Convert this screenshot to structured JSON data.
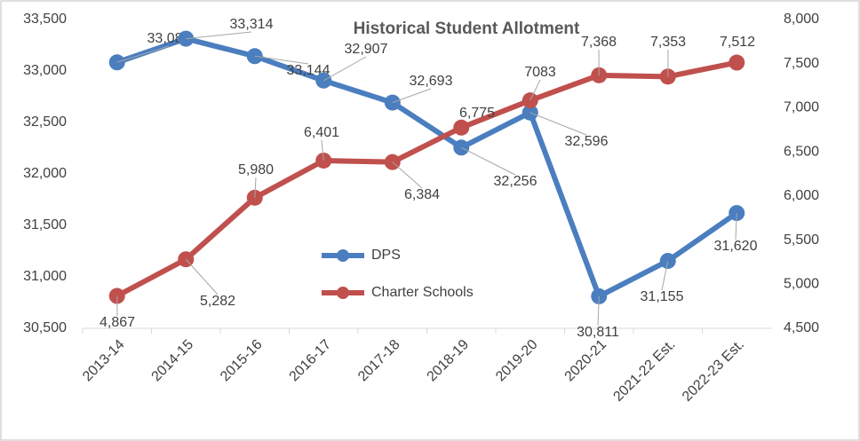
{
  "chart_data": {
    "type": "line",
    "title": "Historical Student Allotment",
    "categories": [
      "2013-14",
      "2014-15",
      "2015-16",
      "2016-17",
      "2017-18",
      "2018-19",
      "2019-20",
      "2020-21",
      "2021-22 Est.",
      "2022-23 Est."
    ],
    "series": [
      {
        "name": "DPS",
        "color": "#4a7ebf",
        "values": [
          33084,
          33314,
          33144,
          32907,
          32693,
          32256,
          32596,
          30811,
          31155,
          31620
        ],
        "value_labels": [
          "33,084",
          "33,314",
          "33,144",
          "32,907",
          "32,693",
          "32,256",
          "32,596",
          "30,811",
          "31,155",
          "31,620"
        ]
      },
      {
        "name": "Charter Schools",
        "color": "#c0504d",
        "axis": "y2",
        "values": [
          4867,
          5282,
          5980,
          6401,
          6384,
          6775,
          7083,
          7368,
          7353,
          7512
        ],
        "value_labels": [
          "4,867",
          "5,282",
          "5,980",
          "6,401",
          "6,384",
          "6,775",
          "7083",
          "7,368",
          "7,353",
          "7,512"
        ]
      }
    ],
    "ylim": [
      30500,
      33500
    ],
    "yticks": [
      {
        "value": 30500,
        "label": "30,500"
      },
      {
        "value": 31000,
        "label": "31,000"
      },
      {
        "value": 31500,
        "label": "31,500"
      },
      {
        "value": 32000,
        "label": "32,000"
      },
      {
        "value": 32500,
        "label": "32,500"
      },
      {
        "value": 33000,
        "label": "33,000"
      },
      {
        "value": 33500,
        "label": "33,500"
      }
    ],
    "y2lim": [
      4500,
      8000
    ],
    "y2ticks": [
      {
        "value": 4500,
        "label": "4,500"
      },
      {
        "value": 5000,
        "label": "5,000"
      },
      {
        "value": 5500,
        "label": "5,500"
      },
      {
        "value": 6000,
        "label": "6,000"
      },
      {
        "value": 6500,
        "label": "6,500"
      },
      {
        "value": 7000,
        "label": "7,000"
      },
      {
        "value": 7500,
        "label": "7,500"
      },
      {
        "value": 8000,
        "label": "8,000"
      }
    ]
  }
}
